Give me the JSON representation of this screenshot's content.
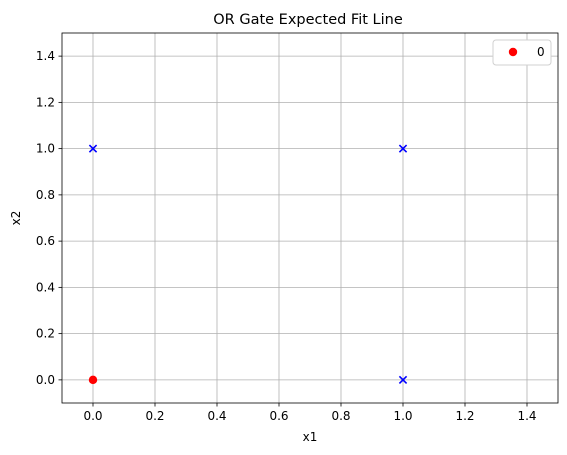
{
  "chart_data": {
    "type": "scatter",
    "title": "OR Gate Expected Fit Line",
    "xlabel": "x1",
    "ylabel": "x2",
    "xlim": [
      -0.1,
      1.5
    ],
    "ylim": [
      -0.1,
      1.5
    ],
    "xticks": [
      "0.0",
      "0.2",
      "0.4",
      "0.6",
      "0.8",
      "1.0",
      "1.2",
      "1.4"
    ],
    "yticks": [
      "0.0",
      "0.2",
      "0.4",
      "0.6",
      "0.8",
      "1.0",
      "1.2",
      "1.4"
    ],
    "grid": true,
    "legend_position": "top-right",
    "series": [
      {
        "name": "0",
        "marker": "circle",
        "color": "#ff0000",
        "points": [
          {
            "x": 0,
            "y": 0
          }
        ]
      },
      {
        "marker": "x",
        "color": "#0000ff",
        "points": [
          {
            "x": 0,
            "y": 1
          },
          {
            "x": 1,
            "y": 1
          },
          {
            "x": 1,
            "y": 0
          }
        ]
      }
    ]
  }
}
